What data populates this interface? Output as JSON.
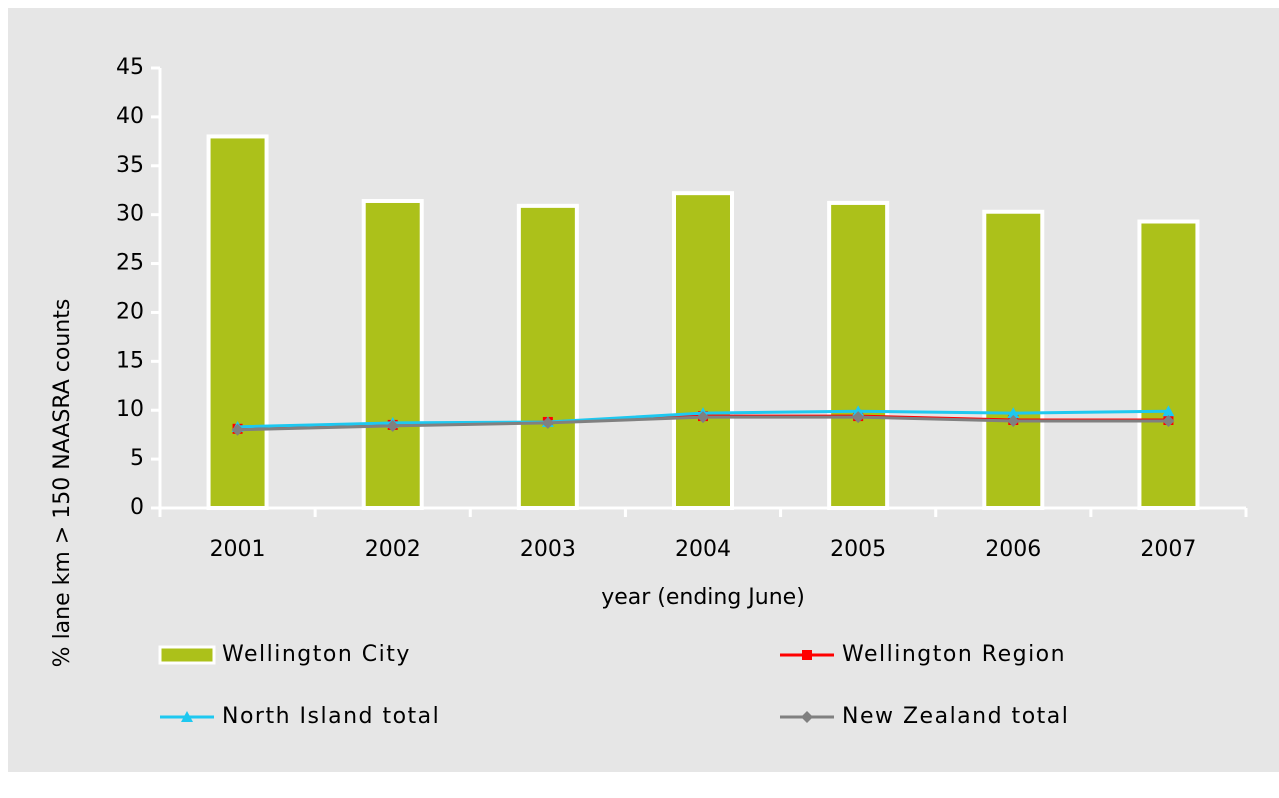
{
  "chart_data": {
    "type": "bar",
    "y_label": "% lane km > 150 NAASRA counts",
    "x_label": "year (ending June)",
    "categories": [
      "2001",
      "2002",
      "2003",
      "2004",
      "2005",
      "2006",
      "2007"
    ],
    "series": [
      {
        "name": "Wellington City",
        "type": "bar",
        "color": "#acc11a",
        "values": [
          38,
          31.4,
          30.9,
          32.2,
          31.2,
          30.3,
          29.3
        ]
      },
      {
        "name": "Wellington Region",
        "type": "line",
        "marker": "square",
        "color": "#ff0000",
        "values": [
          8.1,
          8.5,
          8.8,
          9.4,
          9.4,
          9.0,
          9.0
        ]
      },
      {
        "name": "North Island total",
        "type": "line",
        "marker": "triangle",
        "color": "#1ec8f0",
        "values": [
          8.3,
          8.7,
          8.8,
          9.7,
          9.9,
          9.7,
          9.9
        ]
      },
      {
        "name": "New Zealand total",
        "type": "line",
        "marker": "diamond",
        "color": "#808080",
        "values": [
          8.0,
          8.4,
          8.7,
          9.3,
          9.3,
          8.9,
          8.9
        ]
      }
    ],
    "ylim": [
      0,
      45
    ],
    "yticks": [
      0,
      5,
      10,
      15,
      20,
      25,
      30,
      35,
      40,
      45
    ]
  }
}
